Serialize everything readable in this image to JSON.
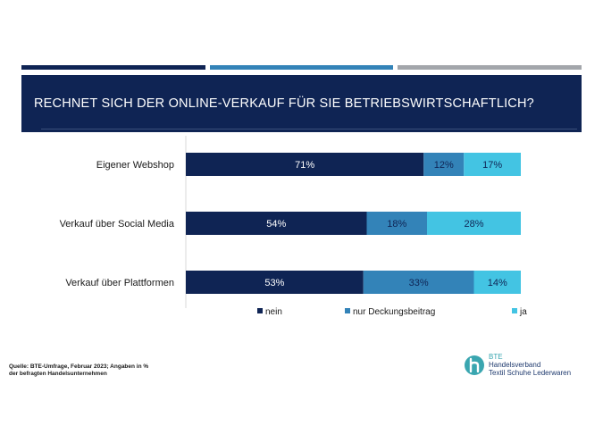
{
  "colors": {
    "nein": "#0f2454",
    "deckung": "#3383b8",
    "ja": "#43c4e3",
    "bar_dark": "#0f2454",
    "bar_mid": "#3383b8",
    "bar_grey": "#a3a6ab"
  },
  "header": {
    "title": "RECHNET SICH DER ONLINE-VERKAUF FÜR SIE BETRIEBSWIRTSCHAFTLICH?"
  },
  "chart_data": {
    "type": "bar",
    "orientation": "horizontal",
    "stacked": true,
    "categories": [
      "Eigener Webshop",
      "Verkauf über Social Media",
      "Verkauf über Plattformen"
    ],
    "series": [
      {
        "name": "nein",
        "values": [
          71,
          54,
          53
        ],
        "labels": [
          "71%",
          "54%",
          "53%"
        ]
      },
      {
        "name": "nur Deckungsbeitrag",
        "values": [
          12,
          18,
          33
        ],
        "labels": [
          "12%",
          "18%",
          "33%"
        ]
      },
      {
        "name": "ja",
        "values": [
          17,
          28,
          14
        ],
        "labels": [
          "17%",
          "28%",
          "14%"
        ]
      }
    ],
    "xlim": [
      0,
      100
    ],
    "legend_position": "bottom",
    "title": "RECHNET SICH DER ONLINE-VERKAUF FÜR SIE BETRIEBSWIRTSCHAFTLICH?"
  },
  "footer": {
    "source_line1": "Quelle: BTE-Umfrage, Februar 2023; Angaben in %",
    "source_line2": "der befragten Handelsunternehmen"
  },
  "logo": {
    "icon": "bte-h-logo-icon",
    "brand": "BTE",
    "line1": "Handelsverband",
    "line2": "Textil  Schuhe  Lederwaren"
  }
}
